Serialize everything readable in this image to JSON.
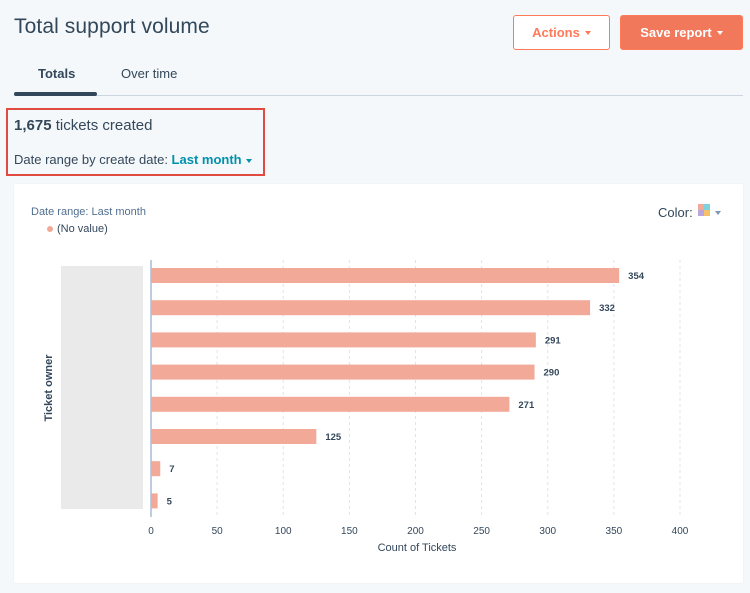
{
  "header": {
    "title": "Total support volume",
    "actions_label": "Actions",
    "save_label": "Save report"
  },
  "tabs": [
    {
      "label": "Totals",
      "active": true
    },
    {
      "label": "Over time",
      "active": false
    }
  ],
  "summary": {
    "count": "1,675",
    "suffix": " tickets created",
    "date_prefix": "Date range by create date: ",
    "date_value": "Last month"
  },
  "card": {
    "date_range": "Date range: Last month",
    "color_label": "Color:"
  },
  "chart_data": {
    "type": "bar",
    "orientation": "horizontal",
    "ylabel": "Ticket owner",
    "xlabel": "Count of Tickets",
    "xlim": [
      0,
      400
    ],
    "xticks": [
      0,
      50,
      100,
      150,
      200,
      250,
      300,
      350,
      400
    ],
    "categories": [
      "",
      "",
      "",
      "",
      "",
      "",
      "",
      ""
    ],
    "legend": [
      "(No value)"
    ],
    "values": [
      354,
      332,
      291,
      290,
      271,
      125,
      7,
      5
    ],
    "grid": true,
    "bar_color": "#f2a998",
    "legend_placement": "top-left"
  },
  "colors": {
    "accent": "#ff7a59",
    "link": "#0091ae",
    "text": "#33475b",
    "highlight": "#e04a3f"
  }
}
